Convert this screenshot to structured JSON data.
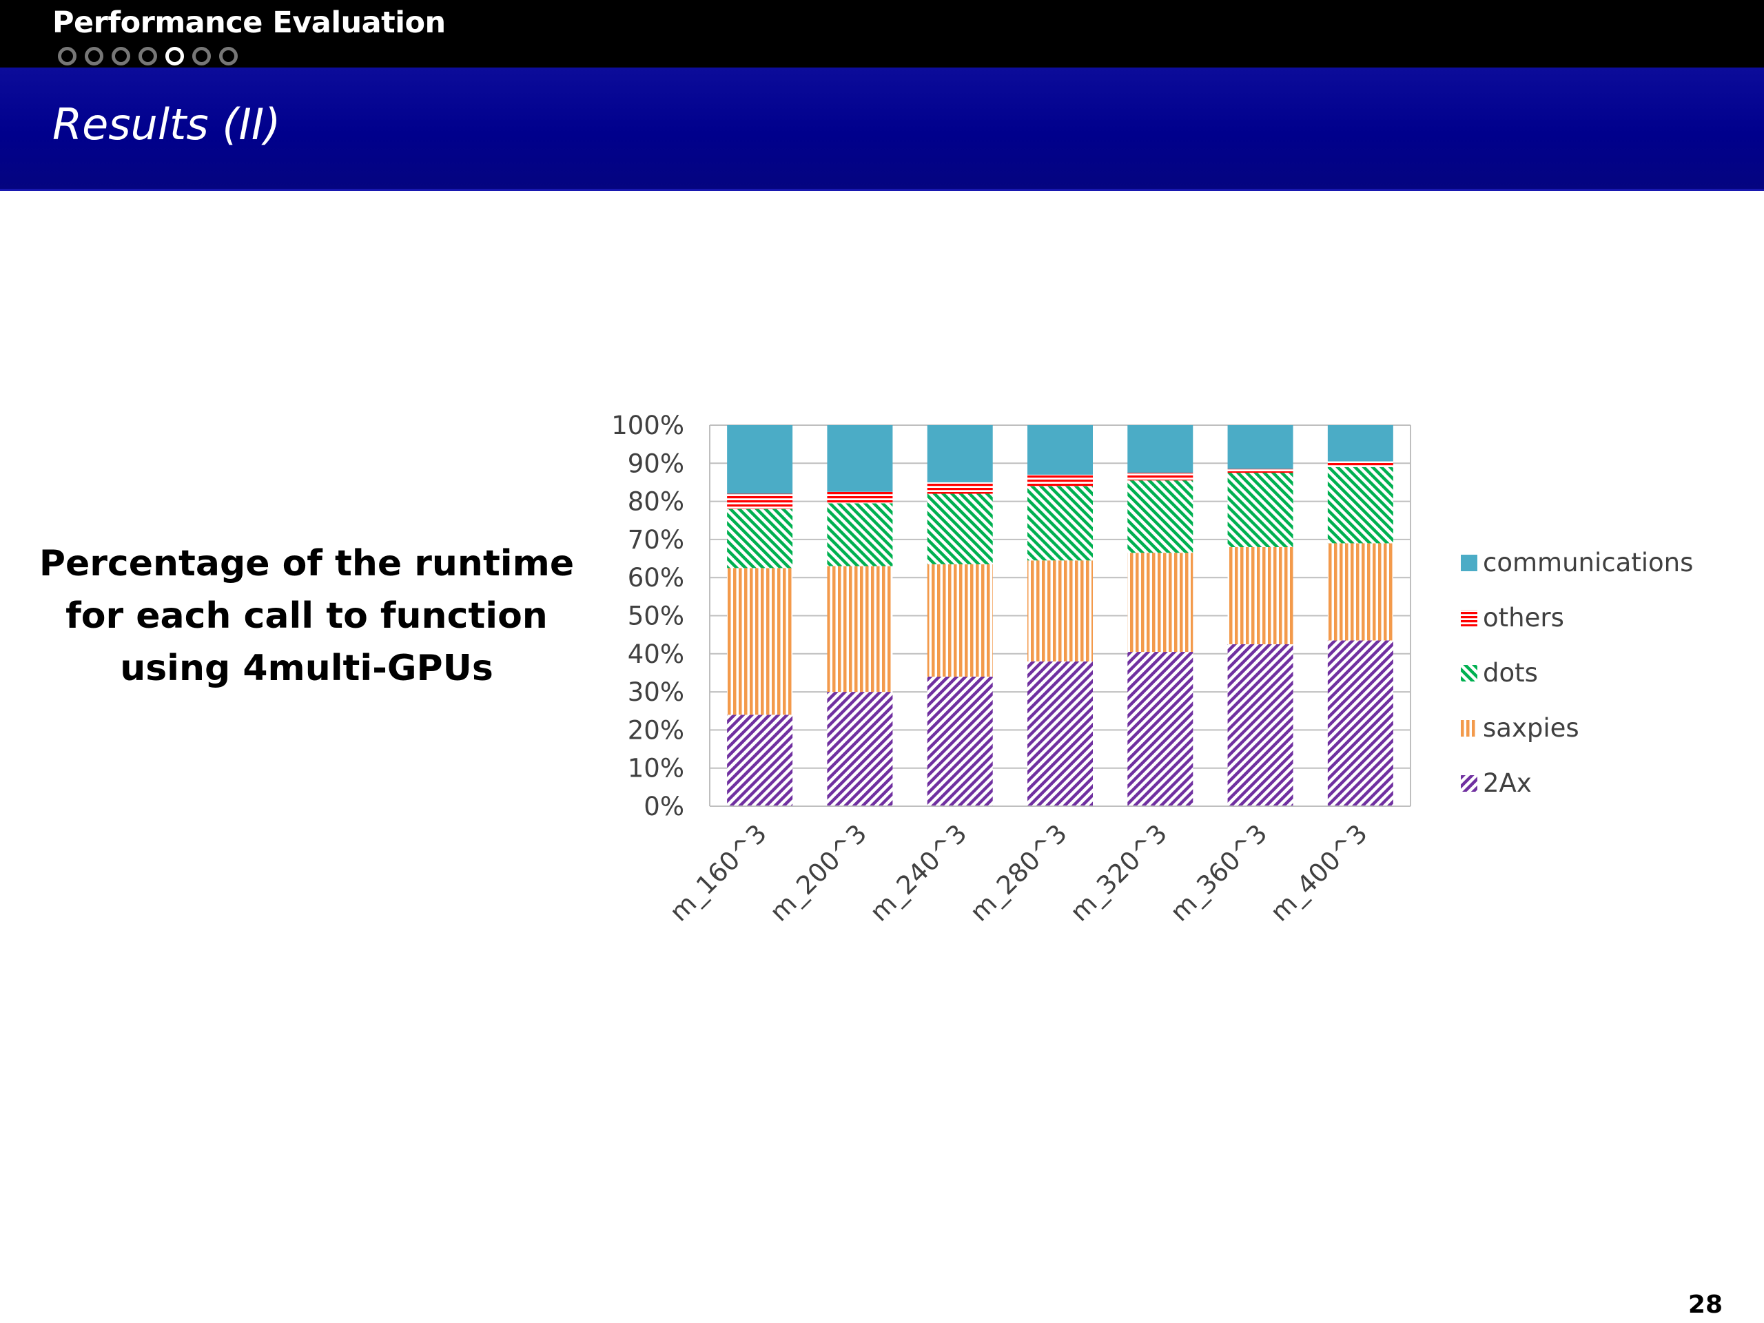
{
  "header": {
    "section": "Performance Evaluation",
    "nav_dots": 7,
    "active_dot": 5,
    "title": "Results (II)"
  },
  "caption": "Percentage of the runtime for each call to function using 4multi-GPUs",
  "page_number": "28",
  "chart_data": {
    "type": "bar",
    "stacked": true,
    "percent_stacked": true,
    "categories": [
      "m_160^3",
      "m_200^3",
      "m_240^3",
      "m_280^3",
      "m_320^3",
      "m_360^3",
      "m_400^3"
    ],
    "series": [
      {
        "name": "2Ax",
        "color": "#7030a0",
        "pattern": "diagonal-hatch",
        "values": [
          24,
          30,
          34,
          38,
          40.5,
          42.5,
          43.5
        ]
      },
      {
        "name": "saxpies",
        "color": "#f39a4b",
        "pattern": "vertical-lines",
        "values": [
          38.5,
          33,
          29.5,
          26.5,
          26,
          25.5,
          25.5
        ]
      },
      {
        "name": "dots",
        "color": "#00b050",
        "pattern": "diagonal-hatch",
        "values": [
          15.5,
          16.5,
          18.5,
          19.5,
          19,
          19.5,
          20
        ]
      },
      {
        "name": "others",
        "color": "#ff0000",
        "pattern": "horizontal-lines",
        "values": [
          4,
          3,
          3,
          3,
          2,
          1,
          1.5
        ]
      },
      {
        "name": "communications",
        "color": "#4bacc6",
        "pattern": "solid",
        "values": [
          18,
          17.5,
          15,
          13,
          12.5,
          11.5,
          9.5
        ]
      }
    ],
    "yticks": [
      "0%",
      "10%",
      "20%",
      "30%",
      "40%",
      "50%",
      "60%",
      "70%",
      "80%",
      "90%",
      "100%"
    ],
    "ylim": [
      0,
      100
    ],
    "legend_order": [
      "communications",
      "others",
      "dots",
      "saxpies",
      "2Ax"
    ],
    "legend_position": "right",
    "grid": true
  }
}
